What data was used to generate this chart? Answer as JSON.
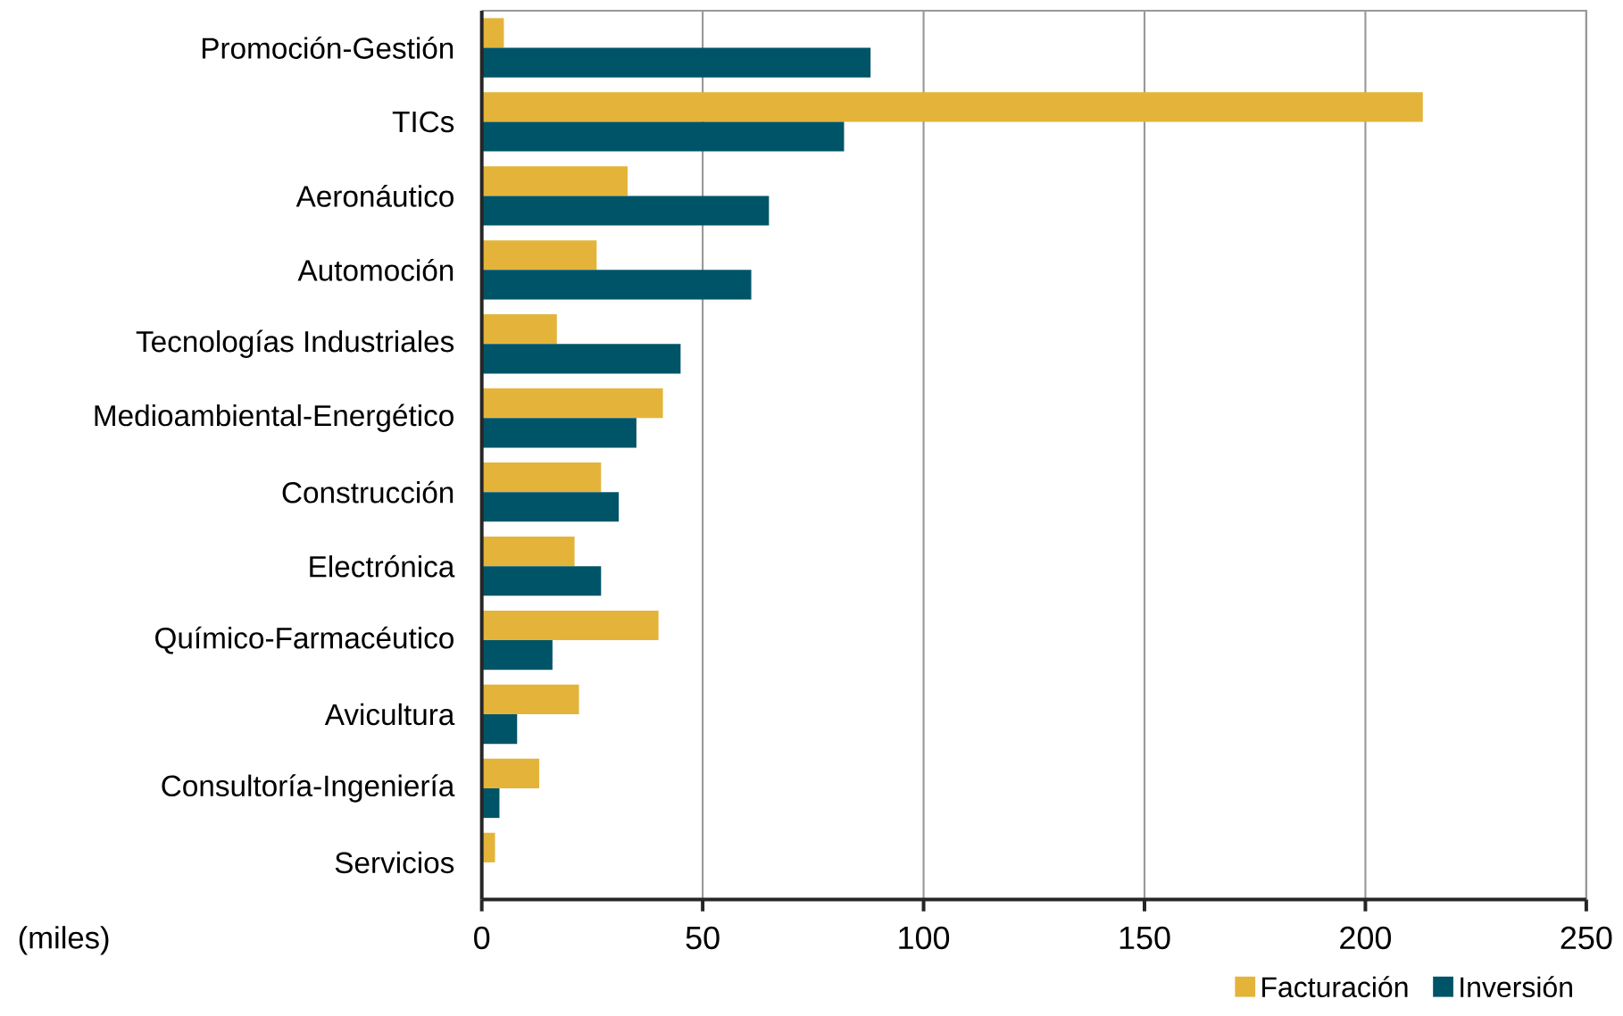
{
  "chart_data": {
    "type": "bar",
    "orientation": "horizontal",
    "categories": [
      "Promoción-Gestión",
      "TICs",
      "Aeronáutico",
      "Automoción",
      "Tecnologías Industriales",
      "Medioambiental-Energético",
      "Construcción",
      "Electrónica",
      "Químico-Farmacéutico",
      "Avicultura",
      "Consultoría-Ingeniería",
      "Servicios"
    ],
    "series": [
      {
        "name": "Facturación",
        "color": "#e4b43a",
        "values": [
          5,
          213,
          33,
          26,
          17,
          41,
          27,
          21,
          40,
          22,
          13,
          3
        ]
      },
      {
        "name": "Inversión",
        "color": "#005468",
        "values": [
          88,
          82,
          65,
          61,
          45,
          35,
          31,
          27,
          16,
          8,
          4,
          0
        ]
      }
    ],
    "xlim": [
      0,
      250
    ],
    "xticks": [
      0,
      50,
      100,
      150,
      200,
      250
    ],
    "annotations": [
      "(miles)"
    ],
    "grid": "x",
    "legend": "bottom right"
  }
}
